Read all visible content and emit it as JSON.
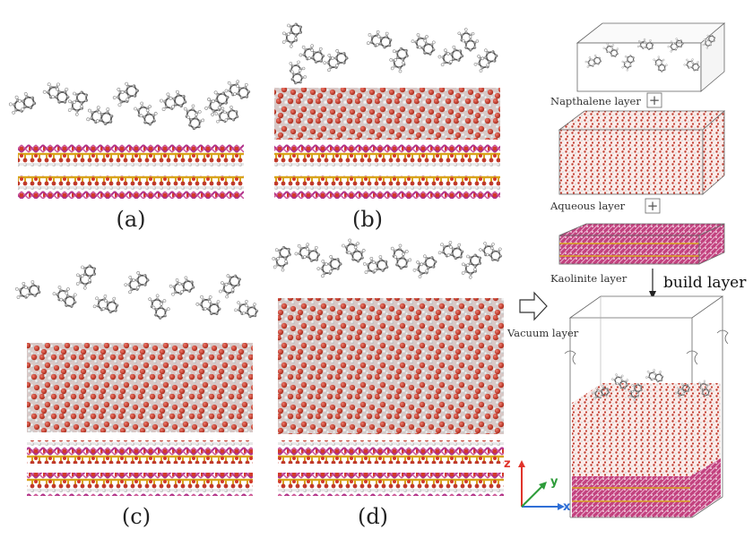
{
  "panels": [
    {
      "label": "(a)",
      "water": "none"
    },
    {
      "label": "(b)",
      "water": "thin"
    },
    {
      "label": "(c)",
      "water": "medium"
    },
    {
      "label": "(d)",
      "water": "thick"
    }
  ],
  "build_stack": {
    "naphthalene_label": "Napthalene layer",
    "aqueous_label": "Aqueous layer",
    "kaolinite_label": "Kaolinite layer",
    "build_label": "build layer",
    "vacuum_label": "Vacuum layer",
    "plus_symbol": "+"
  },
  "axes": {
    "z": "z",
    "y": "y",
    "x": "x"
  },
  "colors": {
    "oxygen": "#c0392b",
    "hydrogen": "#e9e9e9",
    "carbon": "#8a8a8a",
    "aluminum": "#c8519c",
    "silicon": "#d8a41c",
    "z_axis": "#e0342b",
    "y_axis": "#2e9c3a",
    "x_axis": "#2f6fd6"
  }
}
